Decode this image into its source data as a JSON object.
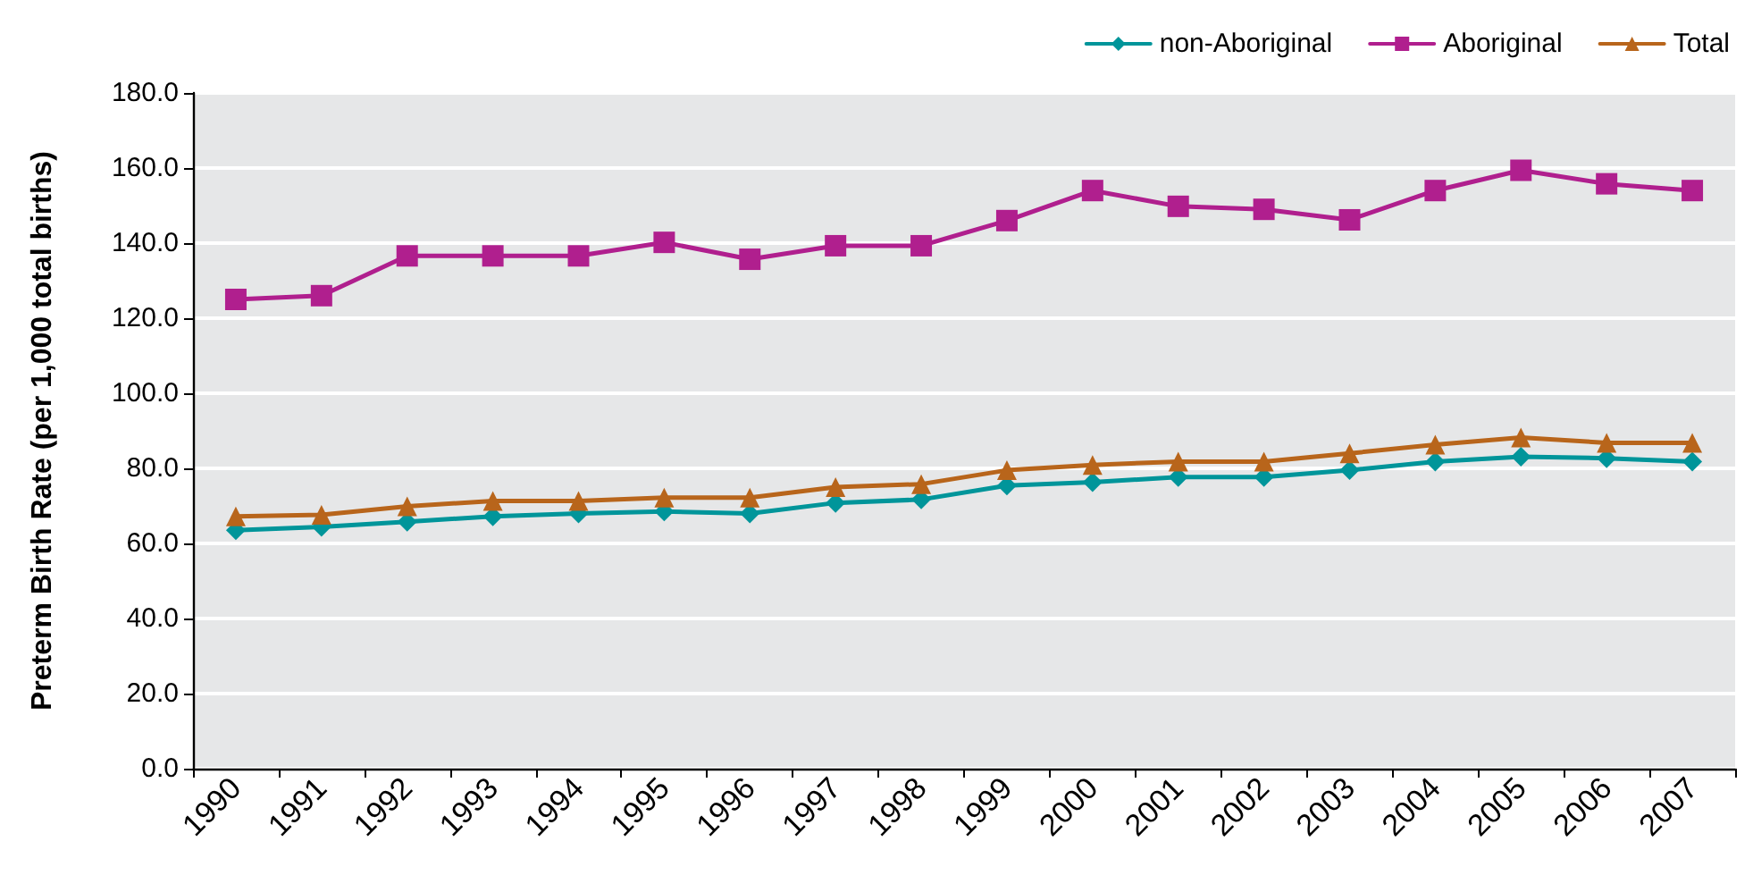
{
  "chart_data": {
    "type": "line",
    "ylabel": "Preterm Birth Rate (per 1,000 total births)",
    "categories": [
      "1990",
      "1991",
      "1992",
      "1993",
      "1994",
      "1995",
      "1996",
      "1997",
      "1998",
      "1999",
      "2000",
      "2001",
      "2002",
      "2003",
      "2004",
      "2005",
      "2006",
      "2007"
    ],
    "series": [
      {
        "name": "non-Aboriginal",
        "color": "#00959a",
        "marker": "diamond",
        "values": [
          63.5,
          64.4,
          65.8,
          67.2,
          68,
          68.5,
          68,
          70.8,
          71.7,
          75.4,
          76.3,
          77.7,
          77.7,
          79.5,
          81.8,
          83.1,
          82.7,
          81.8
        ]
      },
      {
        "name": "Aboriginal",
        "color": "#b01f8e",
        "marker": "square",
        "values": [
          125,
          126,
          136.6,
          136.6,
          136.6,
          140.2,
          135.7,
          139.3,
          139.3,
          146,
          154,
          149.8,
          149,
          146.2,
          154,
          159.4,
          155.8,
          154
        ]
      },
      {
        "name": "Total",
        "color": "#b8651b",
        "marker": "triangle",
        "values": [
          67.2,
          67.6,
          69.9,
          71.3,
          71.3,
          72.2,
          72.2,
          75,
          75.8,
          79.5,
          80.9,
          81.8,
          81.8,
          84,
          86.3,
          88.2,
          86.8,
          86.8
        ]
      }
    ],
    "ylim": [
      0,
      180
    ],
    "yticks": [
      {
        "value": 0,
        "label": "0.0"
      },
      {
        "value": 20,
        "label": "20.0"
      },
      {
        "value": 40,
        "label": "40.0"
      },
      {
        "value": 60,
        "label": "60.0"
      },
      {
        "value": 80,
        "label": "80.0"
      },
      {
        "value": 100,
        "label": "100.0"
      },
      {
        "value": 120,
        "label": "120.0"
      },
      {
        "value": 140,
        "label": "140.0"
      },
      {
        "value": 160,
        "label": "160.0"
      },
      {
        "value": 180,
        "label": "180.0"
      }
    ],
    "grid": "y",
    "legend": "top right",
    "line_style": "solid"
  }
}
